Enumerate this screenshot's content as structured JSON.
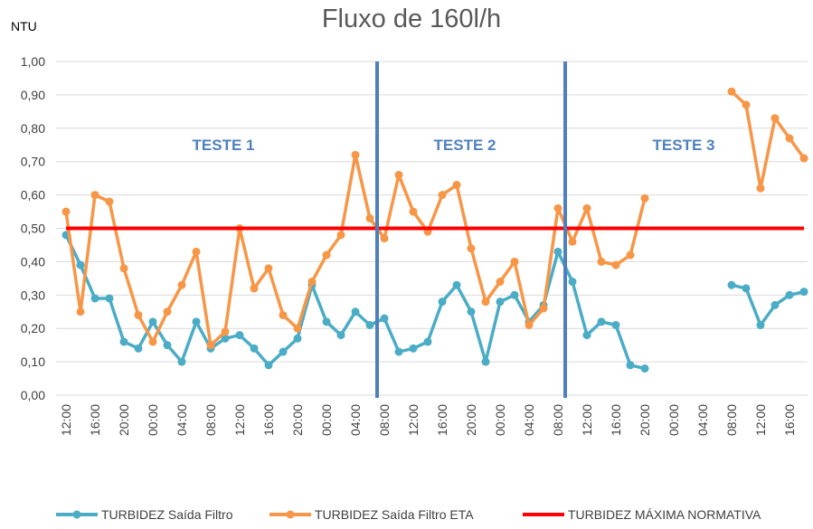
{
  "chart_data": {
    "type": "line",
    "title": "Fluxo de 160l/h",
    "y_label": "NTU",
    "annotations": [
      "TESTE 1",
      "TESTE 2",
      "TESTE 3"
    ],
    "categories": [
      "12:00",
      null,
      "16:00",
      null,
      "20:00",
      null,
      "00:00",
      null,
      "04:00",
      null,
      "08:00",
      null,
      "12:00",
      null,
      "16:00",
      null,
      "20:00",
      null,
      "00:00",
      null,
      "04:00",
      null,
      "08:00",
      null,
      "12:00",
      null,
      "16:00",
      null,
      "20:00",
      null,
      "00:00",
      null,
      "04:00",
      null,
      "08:00",
      null,
      "12:00",
      null,
      "16:00",
      null,
      "20:00",
      null,
      "00:00",
      null,
      "04:00",
      null,
      "08:00",
      null,
      "12:00",
      null,
      "16:00",
      null
    ],
    "series": [
      {
        "name": "TURBIDEZ Saída Filtro",
        "color": "#4bacc6",
        "markers": true,
        "values": [
          0.48,
          0.39,
          0.29,
          0.29,
          0.16,
          0.14,
          0.22,
          0.15,
          0.1,
          0.22,
          0.14,
          0.17,
          0.18,
          0.14,
          0.09,
          0.13,
          0.17,
          0.33,
          0.22,
          0.18,
          0.25,
          0.21,
          0.23,
          0.13,
          0.14,
          0.16,
          0.28,
          0.33,
          0.25,
          0.1,
          0.28,
          0.3,
          0.22,
          0.27,
          0.43,
          0.34,
          0.18,
          0.22,
          0.21,
          0.09,
          0.08,
          null,
          null,
          null,
          null,
          null,
          0.33,
          0.32,
          0.21,
          0.27,
          0.3,
          0.31
        ]
      },
      {
        "name": "TURBIDEZ Saída Filtro ETA",
        "color": "#f79646",
        "markers": true,
        "values": [
          0.55,
          0.25,
          0.6,
          0.58,
          0.38,
          0.24,
          0.16,
          0.25,
          0.33,
          0.43,
          0.15,
          0.19,
          0.5,
          0.32,
          0.38,
          0.24,
          0.2,
          0.34,
          0.42,
          0.48,
          0.72,
          0.53,
          0.47,
          0.66,
          0.55,
          0.49,
          0.6,
          0.63,
          0.44,
          0.28,
          0.34,
          0.4,
          0.21,
          0.26,
          0.56,
          0.46,
          0.56,
          0.4,
          0.39,
          0.42,
          0.59,
          null,
          null,
          null,
          null,
          null,
          0.91,
          0.87,
          0.62,
          0.83,
          0.77,
          0.71
        ]
      },
      {
        "name": "TURBIDEZ MÁXIMA NORMATIVA",
        "color": "#ff0000",
        "markers": false,
        "values": [
          0.5,
          0.5,
          0.5,
          0.5,
          0.5,
          0.5,
          0.5,
          0.5,
          0.5,
          0.5,
          0.5,
          0.5,
          0.5,
          0.5,
          0.5,
          0.5,
          0.5,
          0.5,
          0.5,
          0.5,
          0.5,
          0.5,
          0.5,
          0.5,
          0.5,
          0.5,
          0.5,
          0.5,
          0.5,
          0.5,
          0.5,
          0.5,
          0.5,
          0.5,
          0.5,
          0.5,
          0.5,
          0.5,
          0.5,
          0.5,
          0.5,
          0.5,
          0.5,
          0.5,
          0.5,
          0.5,
          0.5,
          0.5,
          0.5,
          0.5,
          0.5,
          0.5
        ]
      }
    ],
    "ylim": [
      0,
      1
    ],
    "yticks": [
      {
        "value": 0,
        "label": "0,00"
      },
      {
        "value": 0.1,
        "label": "0,10"
      },
      {
        "value": 0.2,
        "label": "0,20"
      },
      {
        "value": 0.3,
        "label": "0,30"
      },
      {
        "value": 0.4,
        "label": "0,40"
      },
      {
        "value": 0.5,
        "label": "0,50"
      },
      {
        "value": 0.6,
        "label": "0,60"
      },
      {
        "value": 0.7,
        "label": "0,70"
      },
      {
        "value": 0.8,
        "label": "0,80"
      },
      {
        "value": 0.9,
        "label": "0,90"
      },
      {
        "value": 1,
        "label": "1,00"
      }
    ],
    "grid": true,
    "legend": "bottom"
  }
}
